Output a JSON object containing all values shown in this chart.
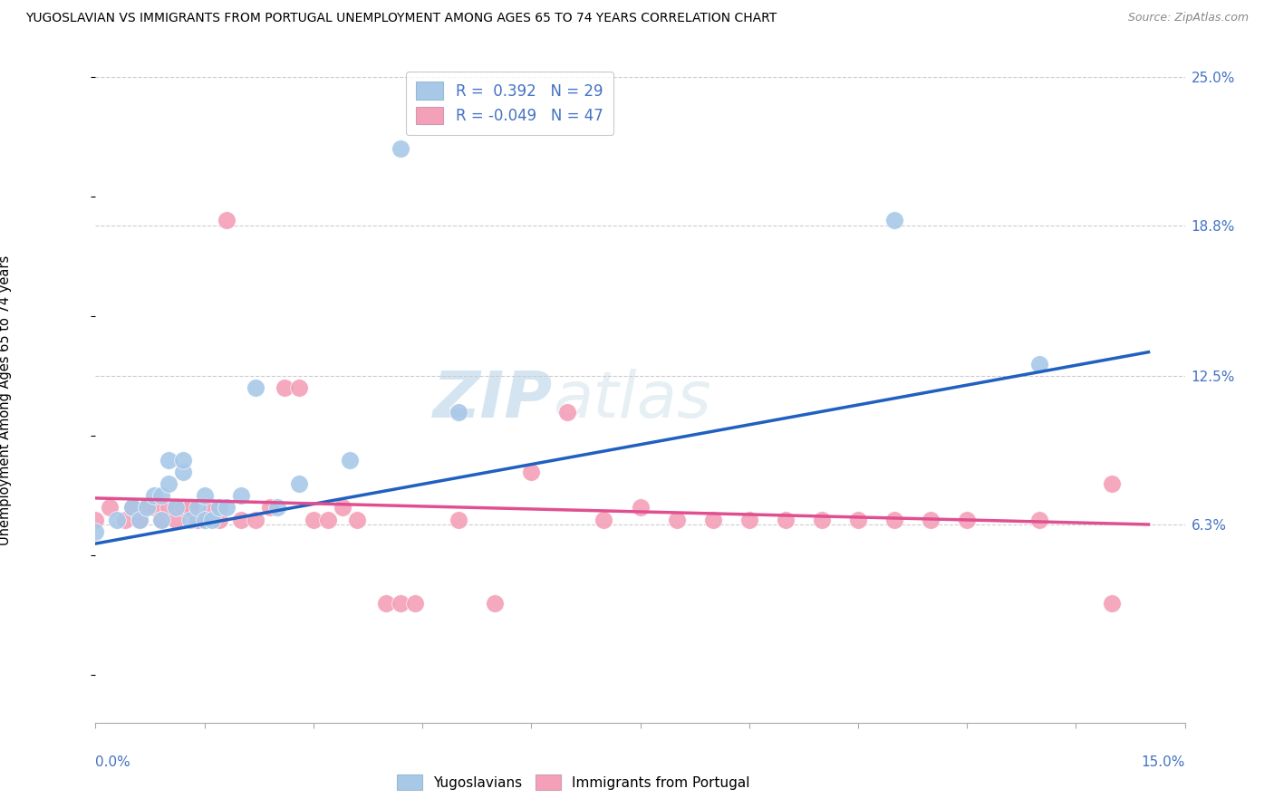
{
  "title": "YUGOSLAVIAN VS IMMIGRANTS FROM PORTUGAL UNEMPLOYMENT AMONG AGES 65 TO 74 YEARS CORRELATION CHART",
  "source": "Source: ZipAtlas.com",
  "ylabel": "Unemployment Among Ages 65 to 74 years",
  "xlim": [
    0.0,
    0.15
  ],
  "ylim": [
    -0.02,
    0.25
  ],
  "y_tick_vals_right": [
    0.25,
    0.188,
    0.125,
    0.063
  ],
  "y_tick_labels_right": [
    "25.0%",
    "18.8%",
    "12.5%",
    "6.3%"
  ],
  "color_blue": "#a8c8e8",
  "color_pink": "#f4a0b8",
  "line_blue": "#2060c0",
  "line_pink": "#e05090",
  "watermark_zip": "ZIP",
  "watermark_atlas": "atlas",
  "yugoslavian_x": [
    0.0,
    0.003,
    0.005,
    0.006,
    0.007,
    0.008,
    0.009,
    0.009,
    0.01,
    0.01,
    0.011,
    0.012,
    0.012,
    0.013,
    0.014,
    0.015,
    0.015,
    0.016,
    0.017,
    0.018,
    0.02,
    0.022,
    0.025,
    0.028,
    0.035,
    0.042,
    0.05,
    0.11,
    0.13
  ],
  "yugoslavian_y": [
    0.06,
    0.065,
    0.07,
    0.065,
    0.07,
    0.075,
    0.065,
    0.075,
    0.08,
    0.09,
    0.07,
    0.085,
    0.09,
    0.065,
    0.07,
    0.065,
    0.075,
    0.065,
    0.07,
    0.07,
    0.075,
    0.12,
    0.07,
    0.08,
    0.09,
    0.22,
    0.11,
    0.19,
    0.13
  ],
  "portugal_x": [
    0.0,
    0.002,
    0.004,
    0.005,
    0.006,
    0.007,
    0.008,
    0.009,
    0.01,
    0.011,
    0.012,
    0.013,
    0.014,
    0.015,
    0.016,
    0.017,
    0.018,
    0.02,
    0.022,
    0.024,
    0.026,
    0.028,
    0.03,
    0.032,
    0.034,
    0.036,
    0.04,
    0.042,
    0.044,
    0.05,
    0.055,
    0.06,
    0.065,
    0.07,
    0.075,
    0.08,
    0.085,
    0.09,
    0.095,
    0.1,
    0.105,
    0.11,
    0.115,
    0.12,
    0.13,
    0.14,
    0.14
  ],
  "portugal_y": [
    0.065,
    0.07,
    0.065,
    0.07,
    0.065,
    0.07,
    0.07,
    0.065,
    0.07,
    0.065,
    0.07,
    0.07,
    0.065,
    0.065,
    0.07,
    0.065,
    0.19,
    0.065,
    0.065,
    0.07,
    0.12,
    0.12,
    0.065,
    0.065,
    0.07,
    0.065,
    0.03,
    0.03,
    0.03,
    0.065,
    0.03,
    0.085,
    0.11,
    0.065,
    0.07,
    0.065,
    0.065,
    0.065,
    0.065,
    0.065,
    0.065,
    0.065,
    0.065,
    0.065,
    0.065,
    0.08,
    0.03
  ],
  "blue_line_x": [
    0.0,
    0.145
  ],
  "blue_line_y": [
    0.055,
    0.135
  ],
  "pink_line_x": [
    0.0,
    0.145
  ],
  "pink_line_y": [
    0.074,
    0.063
  ]
}
